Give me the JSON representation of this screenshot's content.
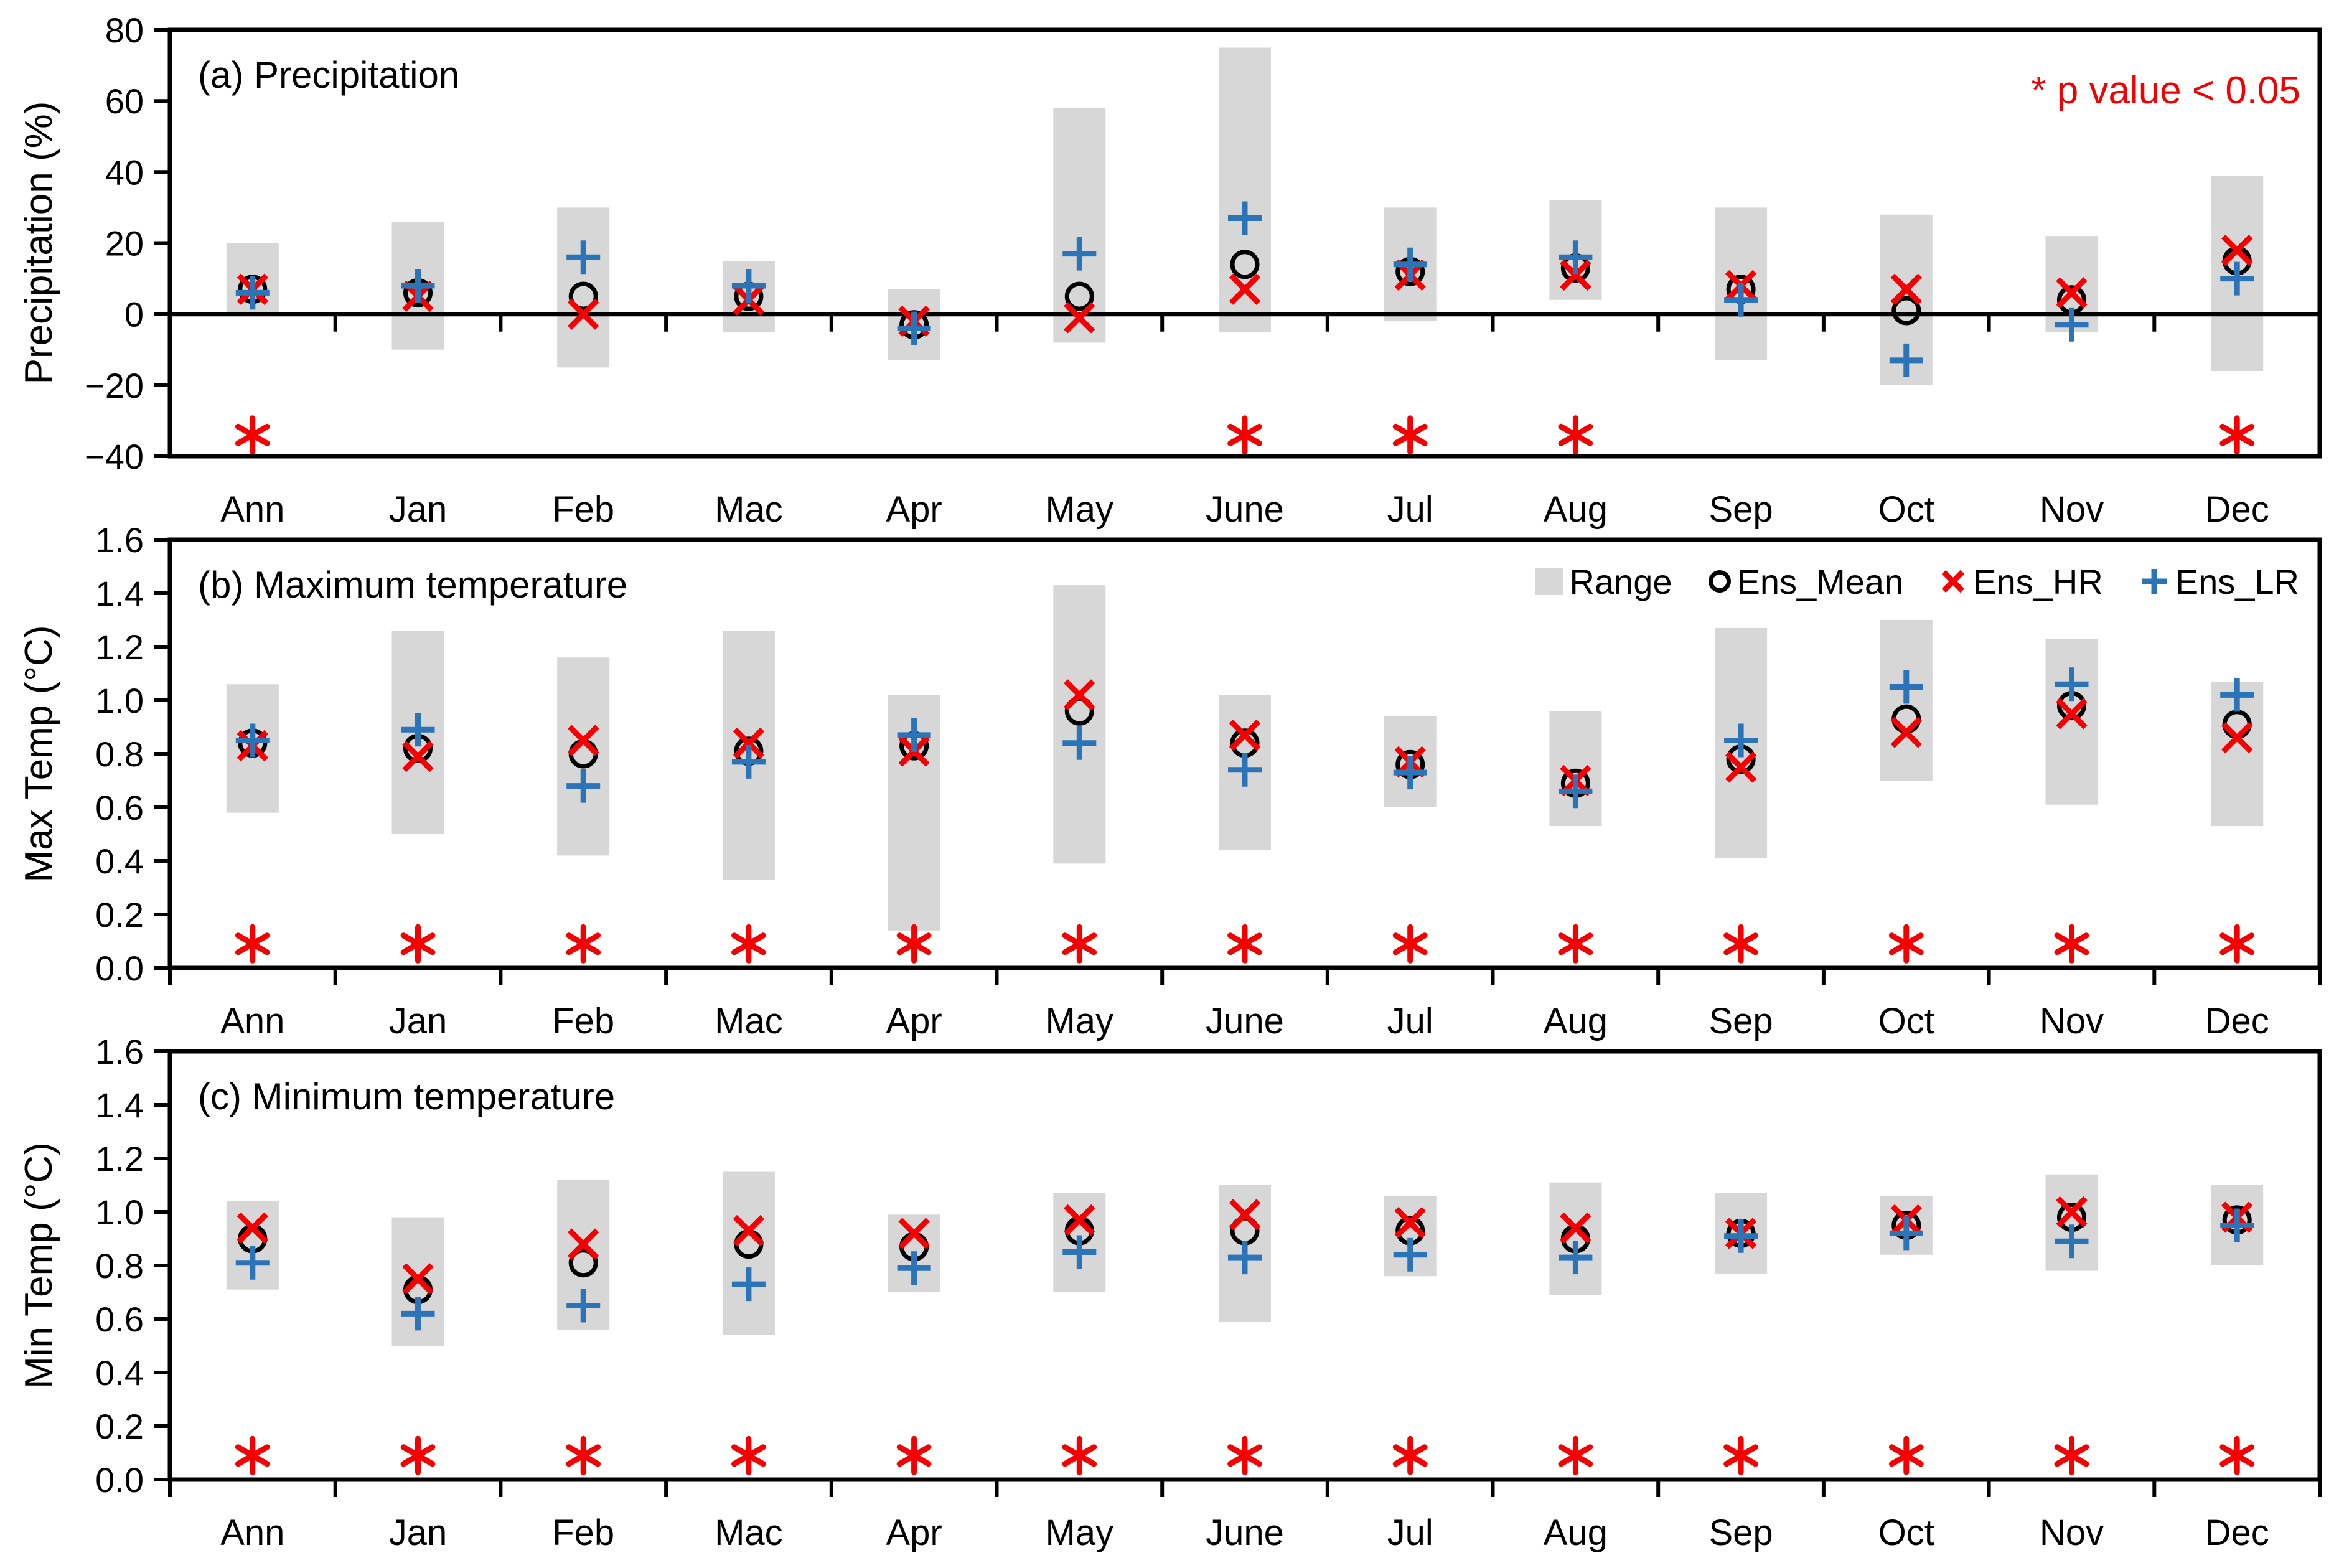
{
  "colors": {
    "range": "#d7d7d7",
    "ens_mean": "#000000",
    "ens_hr": "#f40000",
    "ens_lr": "#2b74b8",
    "significance": "#f40000",
    "axis": "#000000"
  },
  "chart_data": [
    {
      "id": "a",
      "type": "scatter",
      "title": "(a) Precipitation",
      "ylabel": "Precipitation (%)",
      "ylim": [
        -40,
        80
      ],
      "ytick_step": 20,
      "zero_line": true,
      "grid": false,
      "legend": false,
      "annotations": [
        "* p value < 0.05"
      ],
      "categories": [
        "Ann",
        "Jan",
        "Feb",
        "Mac",
        "Apr",
        "May",
        "June",
        "Jul",
        "Aug",
        "Sep",
        "Oct",
        "Nov",
        "Dec"
      ],
      "series": [
        {
          "name": "Range",
          "type": "range-bar",
          "low": [
            0,
            -10,
            -15,
            -5,
            -13,
            -8,
            -5,
            -2,
            4,
            -13,
            -20,
            -5,
            -16
          ],
          "high": [
            20,
            26,
            30,
            15,
            7,
            58,
            75,
            30,
            32,
            30,
            28,
            22,
            39
          ]
        },
        {
          "name": "Ens_Mean",
          "type": "scatter-circle",
          "values": [
            7,
            6,
            5,
            5,
            -3,
            5,
            14,
            12,
            13,
            7,
            1,
            4,
            15
          ]
        },
        {
          "name": "Ens_HR",
          "type": "scatter-x",
          "values": [
            7,
            5,
            0,
            4,
            -2,
            -1,
            7,
            11,
            11,
            8,
            7,
            6,
            18
          ]
        },
        {
          "name": "Ens_LR",
          "type": "scatter-plus",
          "values": [
            6,
            8,
            16,
            8,
            -4,
            17,
            27,
            14,
            16,
            4,
            -13,
            -3,
            10
          ]
        },
        {
          "name": "Significance",
          "type": "asterisk",
          "marker_y": -34,
          "flags": [
            1,
            0,
            0,
            0,
            0,
            0,
            1,
            1,
            1,
            0,
            0,
            0,
            1
          ]
        }
      ]
    },
    {
      "id": "b",
      "type": "scatter",
      "title": "(b) Maximum temperature",
      "ylabel": "Max Temp (°C)",
      "ylim": [
        0,
        1.6
      ],
      "ytick_step": 0.2,
      "zero_line": false,
      "grid": false,
      "legend": true,
      "legend_position": "top-right-inside",
      "legend_entries": [
        "Range",
        "Ens_Mean",
        "Ens_HR",
        "Ens_LR"
      ],
      "categories": [
        "Ann",
        "Jan",
        "Feb",
        "Mac",
        "Apr",
        "May",
        "June",
        "Jul",
        "Aug",
        "Sep",
        "Oct",
        "Nov",
        "Dec"
      ],
      "series": [
        {
          "name": "Range",
          "type": "range-bar",
          "low": [
            0.58,
            0.5,
            0.42,
            0.33,
            0.14,
            0.39,
            0.44,
            0.6,
            0.53,
            0.41,
            0.7,
            0.61,
            0.53
          ],
          "high": [
            1.06,
            1.26,
            1.16,
            1.26,
            1.02,
            1.43,
            1.02,
            0.94,
            0.96,
            1.27,
            1.3,
            1.23,
            1.07
          ]
        },
        {
          "name": "Ens_Mean",
          "type": "scatter-circle",
          "values": [
            0.84,
            0.82,
            0.8,
            0.81,
            0.83,
            0.96,
            0.84,
            0.76,
            0.69,
            0.78,
            0.93,
            0.98,
            0.91
          ]
        },
        {
          "name": "Ens_HR",
          "type": "scatter-x",
          "values": [
            0.83,
            0.79,
            0.85,
            0.84,
            0.81,
            1.02,
            0.87,
            0.77,
            0.7,
            0.75,
            0.88,
            0.95,
            0.86
          ]
        },
        {
          "name": "Ens_LR",
          "type": "scatter-plus",
          "values": [
            0.85,
            0.89,
            0.68,
            0.77,
            0.87,
            0.84,
            0.74,
            0.73,
            0.66,
            0.85,
            1.05,
            1.06,
            1.02
          ]
        },
        {
          "name": "Significance",
          "type": "asterisk",
          "marker_y": 0.09,
          "flags": [
            1,
            1,
            1,
            1,
            1,
            1,
            1,
            1,
            1,
            1,
            1,
            1,
            1
          ]
        }
      ]
    },
    {
      "id": "c",
      "type": "scatter",
      "title": "(c) Minimum temperature",
      "ylabel": "Min Temp (°C)",
      "ylim": [
        0,
        1.6
      ],
      "ytick_step": 0.2,
      "zero_line": false,
      "grid": false,
      "legend": false,
      "categories": [
        "Ann",
        "Jan",
        "Feb",
        "Mac",
        "Apr",
        "May",
        "June",
        "Jul",
        "Aug",
        "Sep",
        "Oct",
        "Nov",
        "Dec"
      ],
      "series": [
        {
          "name": "Range",
          "type": "range-bar",
          "low": [
            0.71,
            0.5,
            0.56,
            0.54,
            0.7,
            0.7,
            0.59,
            0.76,
            0.69,
            0.77,
            0.84,
            0.78,
            0.8
          ],
          "high": [
            1.04,
            0.98,
            1.12,
            1.15,
            0.99,
            1.07,
            1.1,
            1.06,
            1.11,
            1.07,
            1.06,
            1.14,
            1.1
          ]
        },
        {
          "name": "Ens_Mean",
          "type": "scatter-circle",
          "values": [
            0.9,
            0.71,
            0.81,
            0.88,
            0.87,
            0.93,
            0.93,
            0.93,
            0.9,
            0.92,
            0.95,
            0.98,
            0.97
          ]
        },
        {
          "name": "Ens_HR",
          "type": "scatter-x",
          "values": [
            0.94,
            0.75,
            0.88,
            0.93,
            0.92,
            0.97,
            0.99,
            0.96,
            0.94,
            0.92,
            0.97,
            1.0,
            0.98
          ]
        },
        {
          "name": "Ens_LR",
          "type": "scatter-plus",
          "values": [
            0.81,
            0.62,
            0.65,
            0.73,
            0.79,
            0.85,
            0.83,
            0.84,
            0.83,
            0.91,
            0.92,
            0.89,
            0.95
          ]
        },
        {
          "name": "Significance",
          "type": "asterisk",
          "marker_y": 0.09,
          "flags": [
            1,
            1,
            1,
            1,
            1,
            1,
            1,
            1,
            1,
            1,
            1,
            1,
            1
          ]
        }
      ]
    }
  ]
}
